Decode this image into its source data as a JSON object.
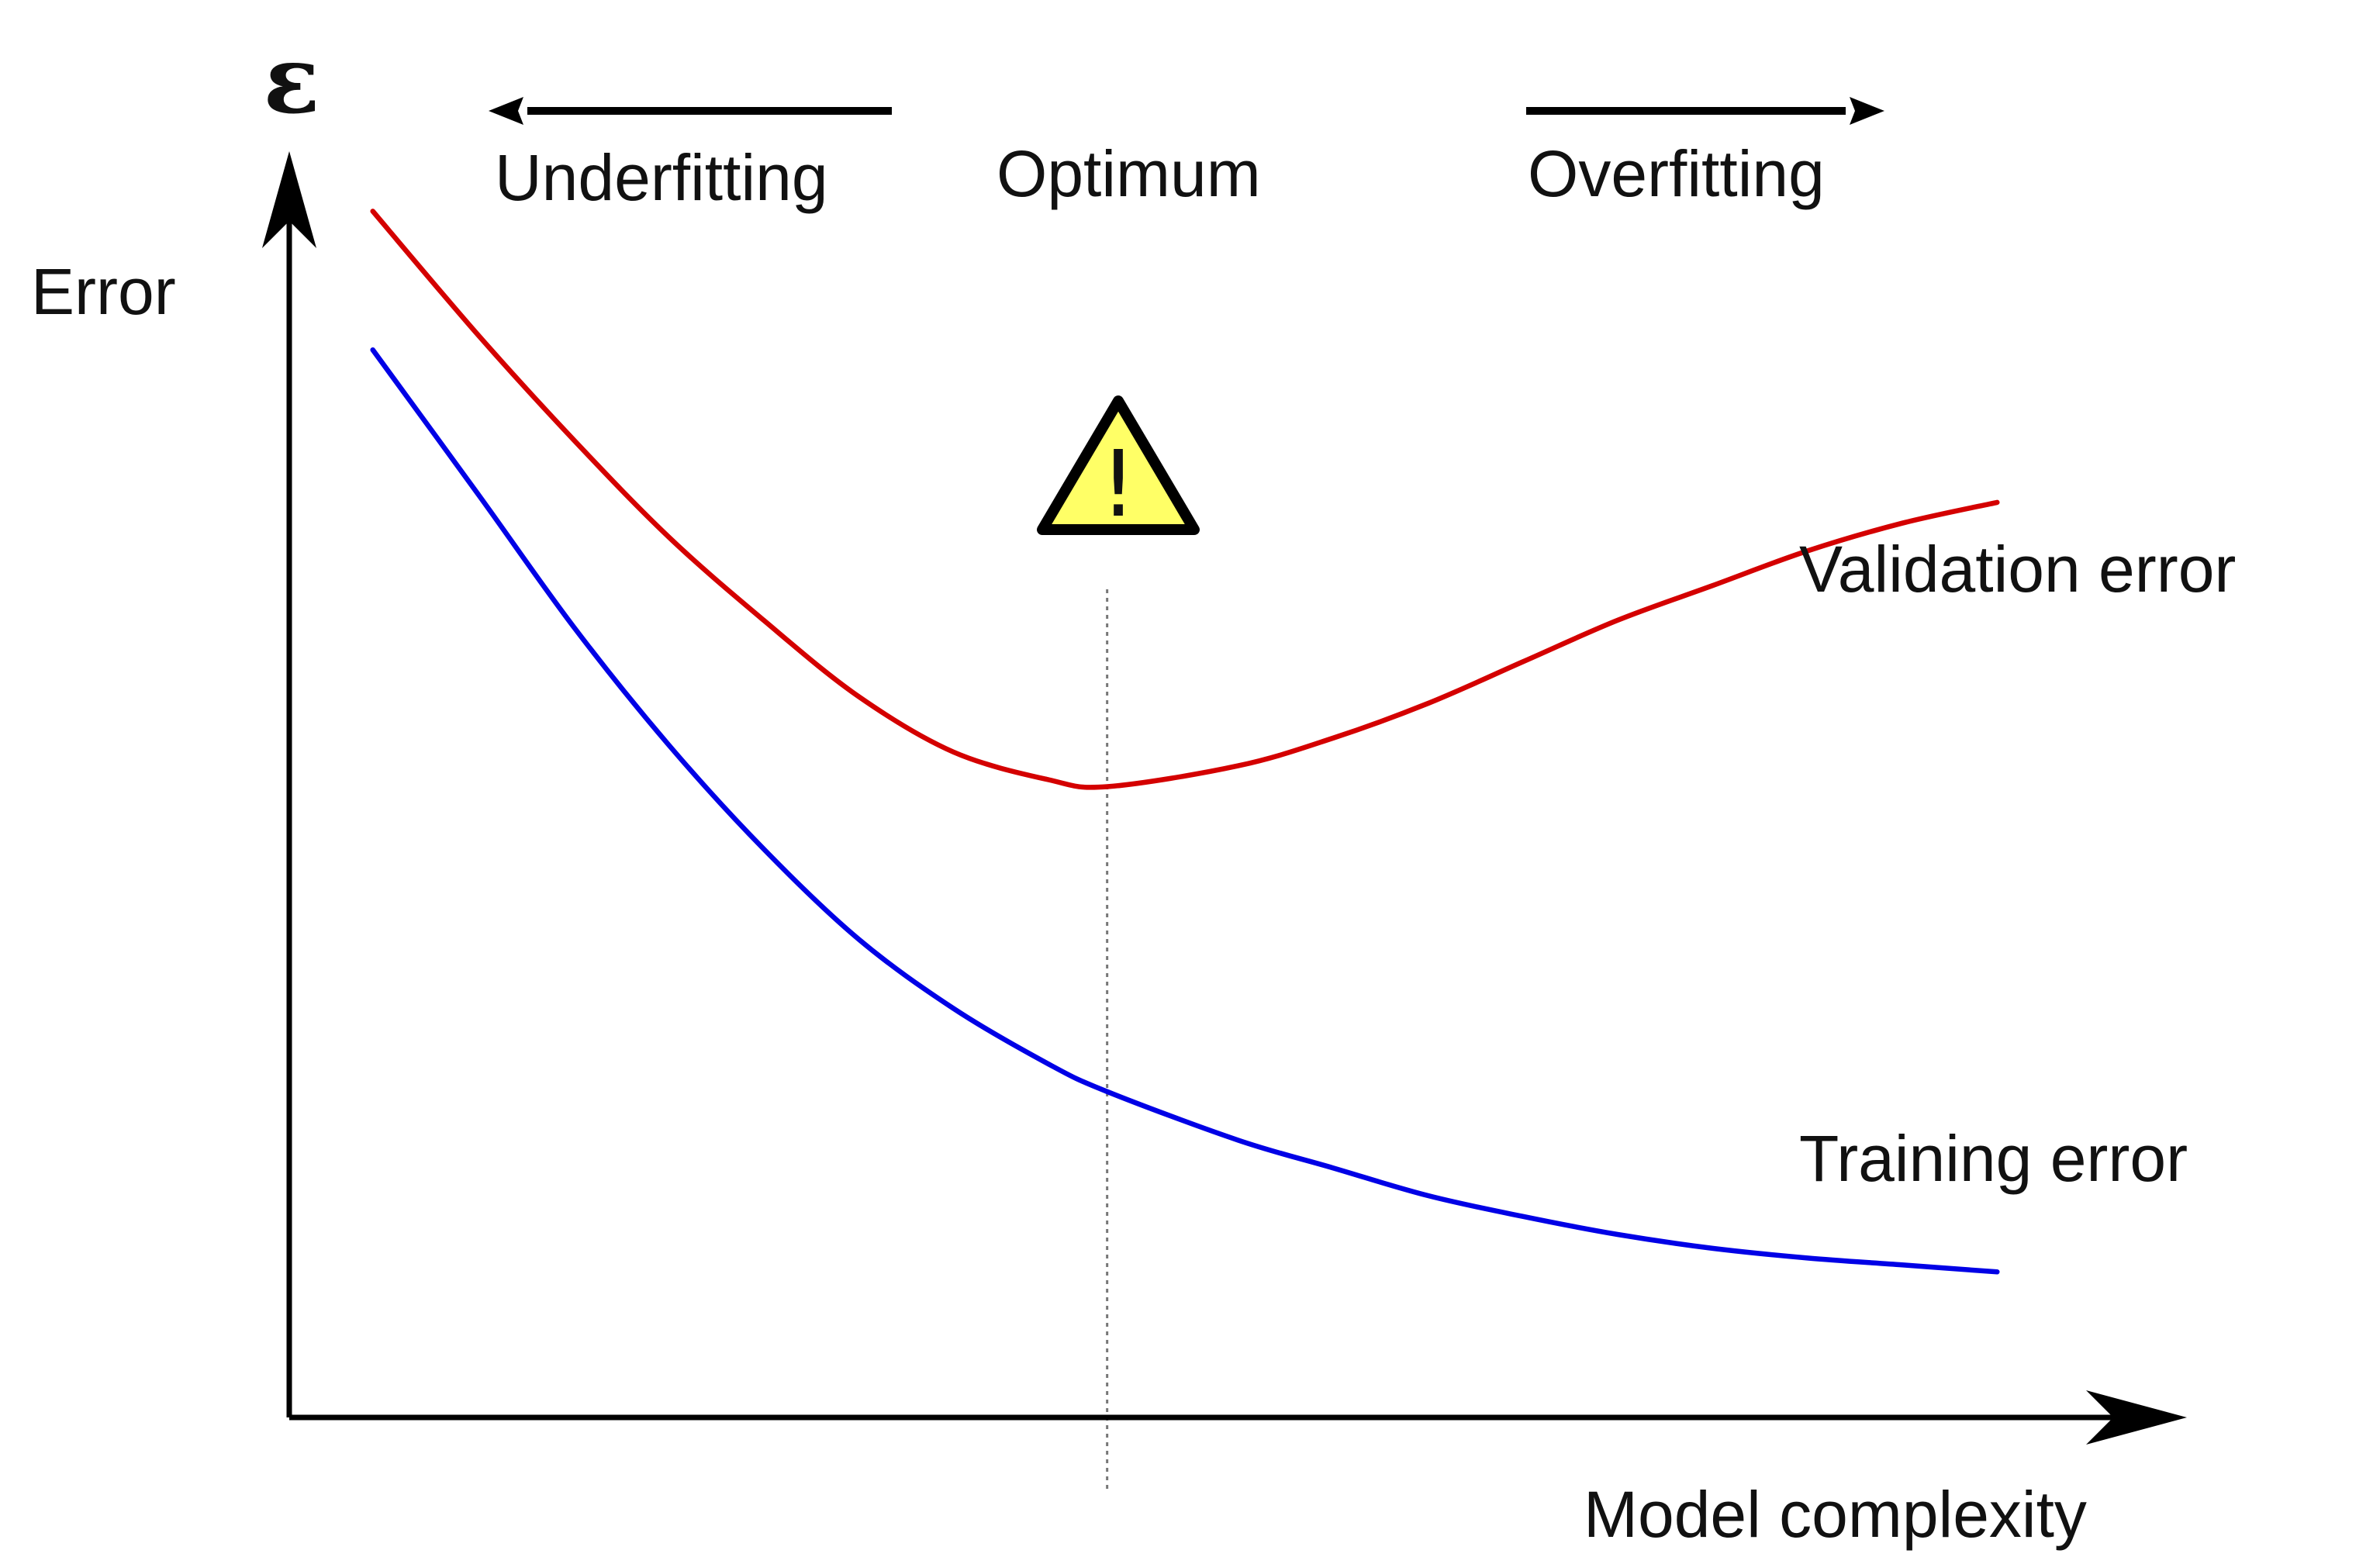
{
  "chart_data": {
    "type": "line",
    "y_symbol": "ε",
    "ylabel": "Error",
    "xlabel": "Model complexity",
    "regions": {
      "left": "Underfitting",
      "middle": "Optimum",
      "right": "Overfitting"
    },
    "xlim": [
      0,
      10
    ],
    "ylim": [
      0,
      10
    ],
    "grid": false,
    "optimum_x": 4.31,
    "x": [
      0.44,
      1.0,
      1.5,
      2.0,
      2.5,
      3.0,
      3.5,
      4.0,
      4.31,
      5.0,
      5.5,
      6.0,
      6.5,
      7.0,
      7.5,
      8.0,
      8.5,
      9.0
    ],
    "series": [
      {
        "name": "Validation error",
        "color": "#d40000",
        "values": [
          8.7,
          7.8,
          7.05,
          6.35,
          5.75,
          5.2,
          4.8,
          4.6,
          4.55,
          4.7,
          4.9,
          5.15,
          5.45,
          5.75,
          6.0,
          6.25,
          6.45,
          6.6
        ]
      },
      {
        "name": "Training error",
        "color": "#0000e6",
        "values": [
          7.7,
          6.65,
          5.7,
          4.85,
          4.1,
          3.45,
          2.95,
          2.55,
          2.35,
          2.0,
          1.8,
          1.6,
          1.45,
          1.32,
          1.22,
          1.15,
          1.1,
          1.05
        ]
      }
    ],
    "annotations": [
      {
        "icon": "warning-icon",
        "text": "!",
        "fill": "#ffff66"
      }
    ]
  }
}
